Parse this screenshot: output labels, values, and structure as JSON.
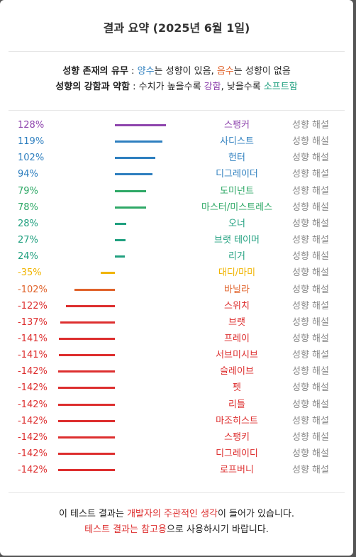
{
  "header": {
    "title": "결과 요약 (2025년 6월 1일)"
  },
  "legend": {
    "line1": {
      "head": "성향 존재의 유무",
      "sep": " : ",
      "pos": "양수",
      "pos_tail": "는 성향이 있음, ",
      "neg": "음수",
      "neg_tail": "는 성향이 없음"
    },
    "line2": {
      "head": "성향의 강함과 약함",
      "sep": " : 수치가 높을수록 ",
      "strong": "강함",
      "mid": ", 낮을수록 ",
      "soft": "소프트함"
    }
  },
  "link_label": "성향 해설",
  "chart_data": {
    "type": "bar",
    "orientation": "horizontal",
    "categories": [
      "스팽커",
      "사디스트",
      "헌터",
      "디그레이더",
      "도미넌트",
      "마스터/미스트레스",
      "오너",
      "브랫 테이머",
      "리거",
      "대디/마미",
      "바닐라",
      "스위치",
      "브랫",
      "프레이",
      "서브미시브",
      "슬레이브",
      "펫",
      "리틀",
      "마조히스트",
      "스팽키",
      "디그레이디",
      "로프버니"
    ],
    "values": [
      128,
      119,
      102,
      94,
      79,
      78,
      28,
      27,
      24,
      -35,
      -102,
      -122,
      -137,
      -141,
      -141,
      -142,
      -142,
      -142,
      -142,
      -142,
      -142,
      -142
    ],
    "labels": [
      "128%",
      "119%",
      "102%",
      "94%",
      "79%",
      "78%",
      "28%",
      "27%",
      "24%",
      "-35%",
      "-102%",
      "-122%",
      "-137%",
      "-141%",
      "-141%",
      "-142%",
      "-142%",
      "-142%",
      "-142%",
      "-142%",
      "-142%",
      "-142%"
    ],
    "colors": [
      "#8e44ad",
      "#2e7fbf",
      "#2e7fbf",
      "#2e7fbf",
      "#2ea866",
      "#2ea866",
      "#20a07f",
      "#20a07f",
      "#20a07f",
      "#f0b400",
      "#e0622a",
      "#dd2e2e",
      "#dd2e2e",
      "#dd2e2e",
      "#dd2e2e",
      "#dd2e2e",
      "#dd2e2e",
      "#dd2e2e",
      "#dd2e2e",
      "#dd2e2e",
      "#dd2e2e",
      "#dd2e2e"
    ],
    "ylim": [
      -142,
      142
    ]
  },
  "footer": {
    "l1_a": "이 테스트 결과는 ",
    "l1_b": "개발자의 주관적인 생각",
    "l1_c": "이 들어가 있습니다.",
    "l2_a": "테스트 결과는 참고용",
    "l2_b": "으로 사용하시기 바랍니다."
  },
  "colors": {
    "pos": "#2e7fbf",
    "neg": "#e0622a",
    "strong": "#8e44ad",
    "soft": "#20a07f",
    "footer_red": "#dd2e2e"
  }
}
